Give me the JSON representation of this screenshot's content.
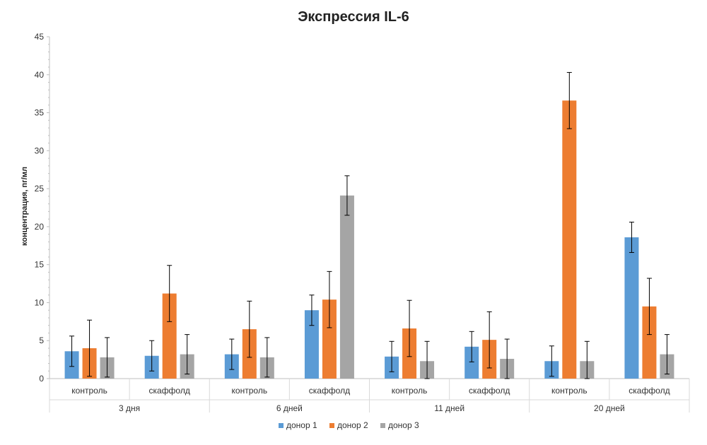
{
  "chart_data": {
    "type": "bar",
    "title": "Экспрессия IL-6",
    "ylabel": "концентрация, пг/мл",
    "xlabel": "",
    "ylim": [
      0,
      45
    ],
    "yticks": [
      0,
      5,
      10,
      15,
      20,
      25,
      30,
      35,
      40,
      45
    ],
    "groups": [
      {
        "label": "3 дня",
        "categories": [
          "контроль",
          "скаффолд"
        ]
      },
      {
        "label": "6 дней",
        "categories": [
          "контроль",
          "скаффолд"
        ]
      },
      {
        "label": "11 дней",
        "categories": [
          "контроль",
          "скаффолд"
        ]
      },
      {
        "label": "20 дней",
        "categories": [
          "контроль",
          "скаффолд"
        ]
      }
    ],
    "series": [
      {
        "name": "донор 1",
        "color": "#5B9BD5",
        "values": [
          3.6,
          3.0,
          3.2,
          9.0,
          2.9,
          4.2,
          2.3,
          18.6
        ],
        "errors": [
          2.0,
          2.0,
          2.0,
          2.0,
          2.0,
          2.0,
          2.0,
          2.0
        ]
      },
      {
        "name": "донор 2",
        "color": "#ED7D31",
        "values": [
          4.0,
          11.2,
          6.5,
          10.4,
          6.6,
          5.1,
          36.6,
          9.5
        ],
        "errors": [
          3.7,
          3.7,
          3.7,
          3.7,
          3.7,
          3.7,
          3.7,
          3.7
        ]
      },
      {
        "name": "донор 3",
        "color": "#A5A5A5",
        "values": [
          2.8,
          3.2,
          2.8,
          24.1,
          2.3,
          2.6,
          2.3,
          3.2
        ],
        "errors": [
          2.6,
          2.6,
          2.6,
          2.6,
          2.6,
          2.6,
          2.6,
          2.6
        ]
      }
    ],
    "legend_position": "bottom",
    "grid": false
  }
}
